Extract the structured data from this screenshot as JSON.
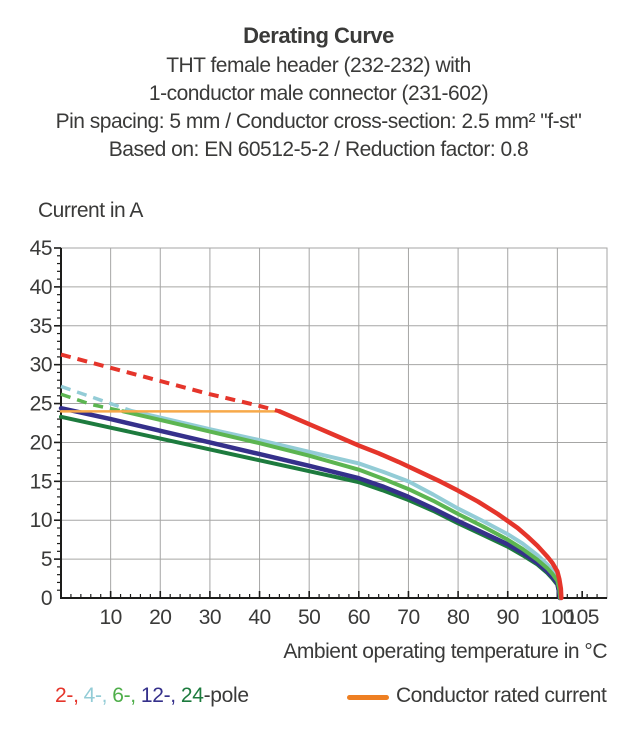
{
  "header": {
    "title": "Derating Curve",
    "subtitle_lines": [
      "THT female header (232-232) with",
      "1-conductor male connector (231-602)",
      "Pin spacing: 5 mm / Conductor cross-section: 2.5 mm² \"f-st\"",
      "Based on: EN 60512-5-2 / Reduction factor: 0.8"
    ]
  },
  "chart_data": {
    "type": "line",
    "title": "Derating Curve",
    "xlabel": "Ambient operating temperature in °C",
    "ylabel": "Current in A",
    "xlim": [
      0,
      110
    ],
    "ylim": [
      0,
      45
    ],
    "x_major_ticks": [
      10,
      20,
      30,
      40,
      50,
      60,
      70,
      80,
      90,
      100,
      105
    ],
    "x_minor_step": 2,
    "y_major_ticks": [
      0,
      5,
      10,
      15,
      20,
      25,
      30,
      35,
      40,
      45
    ],
    "y_minor_step": 1,
    "grid": true,
    "grid_color": "#a6a6a5",
    "axis_color": "#1d1d1b",
    "legend_position": "bottom",
    "series": [
      {
        "name": "2-pole",
        "color": "#e5352b",
        "width": 4.5,
        "dashed_points": [
          [
            0,
            31.3
          ],
          [
            10,
            29.6
          ],
          [
            20,
            27.9
          ],
          [
            30,
            26.2
          ],
          [
            40,
            24.7
          ],
          [
            44,
            24
          ]
        ],
        "solid_points": [
          [
            44,
            24
          ],
          [
            48,
            22.9
          ],
          [
            52,
            21.8
          ],
          [
            56,
            20.7
          ],
          [
            60,
            19.6
          ],
          [
            64,
            18.6
          ],
          [
            68,
            17.5
          ],
          [
            72,
            16.3
          ],
          [
            76,
            15.1
          ],
          [
            80,
            13.8
          ],
          [
            84,
            12.4
          ],
          [
            88,
            10.8
          ],
          [
            90,
            9.9
          ],
          [
            92,
            9.0
          ],
          [
            94,
            7.9
          ],
          [
            96,
            6.7
          ],
          [
            98,
            5.3
          ],
          [
            99,
            4.5
          ],
          [
            100,
            3.4
          ],
          [
            100.4,
            2.4
          ],
          [
            100.7,
            1.2
          ],
          [
            100.8,
            0
          ]
        ]
      },
      {
        "name": "4-pole",
        "color": "#93ccd6",
        "width": 4,
        "dashed_points": [
          [
            0,
            27.2
          ],
          [
            5,
            26.1
          ],
          [
            10,
            25.0
          ],
          [
            14.5,
            24
          ]
        ],
        "solid_points": [
          [
            14.5,
            24
          ],
          [
            20,
            23.2
          ],
          [
            30,
            21.7
          ],
          [
            40,
            20.3
          ],
          [
            50,
            18.8
          ],
          [
            60,
            17.3
          ],
          [
            65,
            16.2
          ],
          [
            70,
            15.0
          ],
          [
            75,
            13.3
          ],
          [
            80,
            11.5
          ],
          [
            85,
            9.9
          ],
          [
            90,
            8.2
          ],
          [
            93,
            7.0
          ],
          [
            96,
            5.5
          ],
          [
            98,
            4.3
          ],
          [
            99,
            3.5
          ],
          [
            100,
            2.5
          ],
          [
            100.4,
            1.3
          ],
          [
            100.6,
            0
          ]
        ]
      },
      {
        "name": "6-pole",
        "color": "#5cb551",
        "width": 4,
        "dashed_points": [
          [
            0,
            26.2
          ],
          [
            6,
            24.9
          ],
          [
            12.5,
            24
          ]
        ],
        "solid_points": [
          [
            12.5,
            24
          ],
          [
            20,
            22.9
          ],
          [
            30,
            21.4
          ],
          [
            40,
            19.9
          ],
          [
            50,
            18.3
          ],
          [
            60,
            16.5
          ],
          [
            65,
            15.3
          ],
          [
            70,
            14.0
          ],
          [
            75,
            12.5
          ],
          [
            80,
            10.8
          ],
          [
            85,
            9.2
          ],
          [
            90,
            7.5
          ],
          [
            93,
            6.3
          ],
          [
            96,
            4.9
          ],
          [
            98,
            3.8
          ],
          [
            99,
            3.1
          ],
          [
            100,
            2.2
          ],
          [
            100.4,
            1.1
          ],
          [
            100.6,
            0
          ]
        ]
      },
      {
        "name": "12-pole",
        "color": "#35308b",
        "width": 4.5,
        "solid_points": [
          [
            0,
            24.4
          ],
          [
            10,
            23.0
          ],
          [
            20,
            21.5
          ],
          [
            30,
            20.0
          ],
          [
            40,
            18.5
          ],
          [
            50,
            17.0
          ],
          [
            60,
            15.4
          ],
          [
            65,
            14.3
          ],
          [
            70,
            13.0
          ],
          [
            75,
            11.5
          ],
          [
            80,
            9.9
          ],
          [
            85,
            8.4
          ],
          [
            90,
            6.9
          ],
          [
            93,
            5.8
          ],
          [
            96,
            4.5
          ],
          [
            98,
            3.4
          ],
          [
            99,
            2.7
          ],
          [
            100,
            1.9
          ],
          [
            100.3,
            0.9
          ],
          [
            100.5,
            0
          ]
        ]
      },
      {
        "name": "24-pole",
        "color": "#1d7b3e",
        "width": 4,
        "solid_points": [
          [
            0,
            23.3
          ],
          [
            10,
            21.9
          ],
          [
            20,
            20.5
          ],
          [
            30,
            19.1
          ],
          [
            40,
            17.7
          ],
          [
            50,
            16.3
          ],
          [
            60,
            14.9
          ],
          [
            65,
            13.8
          ],
          [
            70,
            12.6
          ],
          [
            75,
            11.2
          ],
          [
            80,
            9.6
          ],
          [
            85,
            8.1
          ],
          [
            90,
            6.6
          ],
          [
            93,
            5.5
          ],
          [
            96,
            4.3
          ],
          [
            98,
            3.2
          ],
          [
            99,
            2.5
          ],
          [
            100,
            1.7
          ],
          [
            100.3,
            0.8
          ],
          [
            100.5,
            0
          ]
        ]
      },
      {
        "name": "Conductor rated current",
        "color": "#f7a94a",
        "width": 2.5,
        "solid_points": [
          [
            0,
            24
          ],
          [
            44,
            24
          ]
        ]
      }
    ]
  },
  "legend": {
    "pole_items": [
      {
        "label": "2-,",
        "color": "#e5352b"
      },
      {
        "label": "4-,",
        "color": "#93ccd6"
      },
      {
        "label": "6-,",
        "color": "#4fae4a"
      },
      {
        "label": "12-,",
        "color": "#35308b"
      },
      {
        "label": "24",
        "color": "#1d7b3e"
      }
    ],
    "pole_suffix": "-pole",
    "rated": {
      "label": "Conductor rated current",
      "swatch_color": "#ee7f22"
    }
  }
}
